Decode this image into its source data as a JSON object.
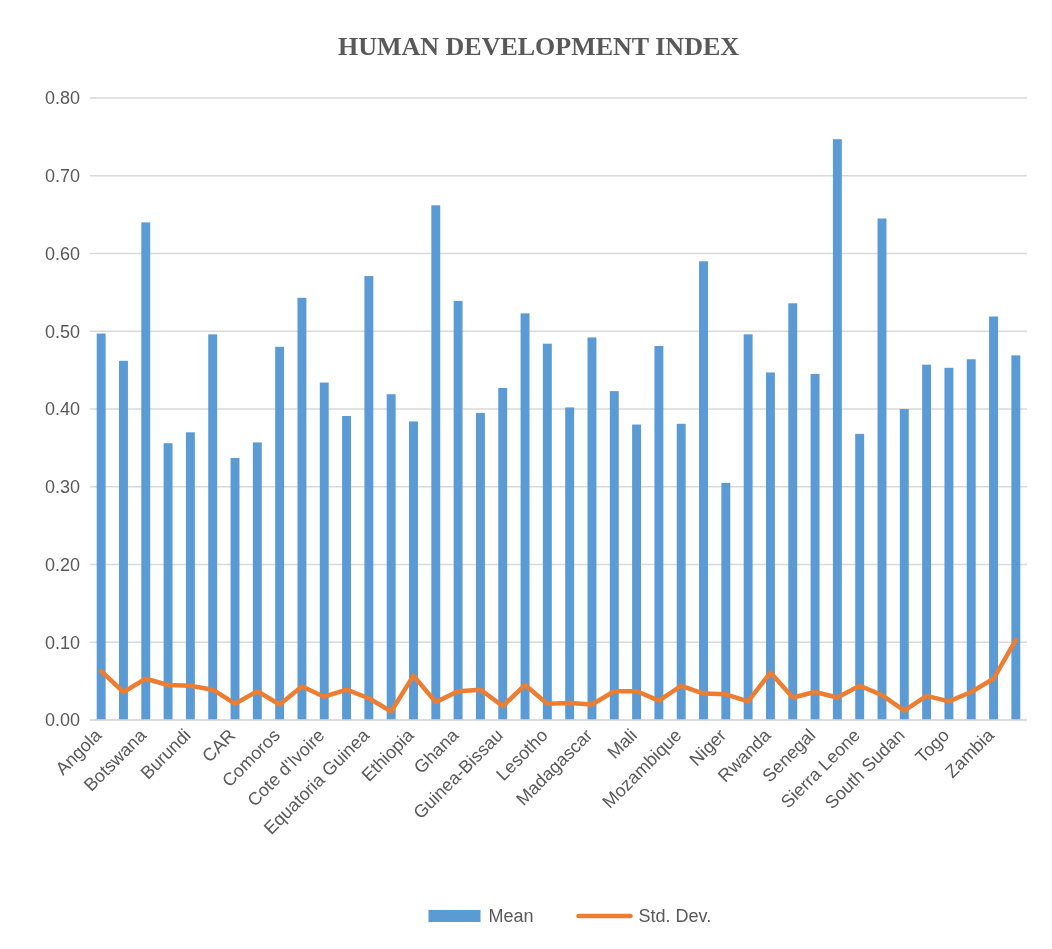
{
  "chart_data": {
    "type": "bar",
    "title": "HUMAN DEVELOPMENT INDEX",
    "categories": [
      "Angola",
      null,
      "Botswana",
      null,
      "Burundi",
      null,
      "CAR",
      null,
      "Comoros",
      null,
      "Cote d'Ivoire",
      null,
      "Equatoria Guinea",
      null,
      "Ethiopia",
      null,
      "Ghana",
      null,
      "Guinea-Bissau",
      null,
      "Lesotho",
      null,
      "Madagascar",
      null,
      "Mali",
      null,
      "Mozambique",
      null,
      "Niger",
      null,
      "Rwanda",
      null,
      "Senegal",
      null,
      "Sierra Leone",
      null,
      "South Sudan",
      null,
      "Togo",
      null,
      "Zambia",
      null
    ],
    "series": [
      {
        "name": "Mean",
        "color": "#5b9bd5",
        "values": [
          0.497,
          0.462,
          0.64,
          0.356,
          0.37,
          0.496,
          0.337,
          0.357,
          0.48,
          0.543,
          0.434,
          0.391,
          0.571,
          0.419,
          0.384,
          0.662,
          0.539,
          0.395,
          0.427,
          0.523,
          0.484,
          0.402,
          0.492,
          0.423,
          0.38,
          0.481,
          0.381,
          0.59,
          0.305,
          0.496,
          0.447,
          0.536,
          0.445,
          0.747,
          0.368,
          0.645,
          0.4,
          0.457,
          0.453,
          0.464,
          0.519,
          0.469
        ]
      },
      {
        "name": "Std. Dev.",
        "type": "line",
        "color": "#ed7d31",
        "values": [
          0.063,
          0.036,
          0.053,
          0.045,
          0.044,
          0.039,
          0.021,
          0.037,
          0.02,
          0.043,
          0.03,
          0.039,
          0.028,
          0.011,
          0.057,
          0.023,
          0.037,
          0.039,
          0.018,
          0.045,
          0.021,
          0.022,
          0.02,
          0.037,
          0.037,
          0.025,
          0.044,
          0.034,
          0.033,
          0.024,
          0.061,
          0.029,
          0.036,
          0.029,
          0.044,
          0.032,
          0.012,
          0.031,
          0.024,
          0.036,
          0.053,
          0.103
        ]
      }
    ],
    "ylim": [
      0,
      0.8
    ],
    "yticks": [
      {
        "value": 0,
        "label": "0.00"
      },
      {
        "value": 0.1,
        "label": "0.10"
      },
      {
        "value": 0.2,
        "label": "0.20"
      },
      {
        "value": 0.3,
        "label": "0.30"
      },
      {
        "value": 0.4,
        "label": "0.40"
      },
      {
        "value": 0.5,
        "label": "0.50"
      },
      {
        "value": 0.6,
        "label": "0.60"
      },
      {
        "value": 0.7,
        "label": "0.70"
      },
      {
        "value": 0.8,
        "label": "0.80"
      }
    ],
    "grid": "y",
    "legend": "bottom",
    "marker": "none",
    "line_style": "solid"
  }
}
